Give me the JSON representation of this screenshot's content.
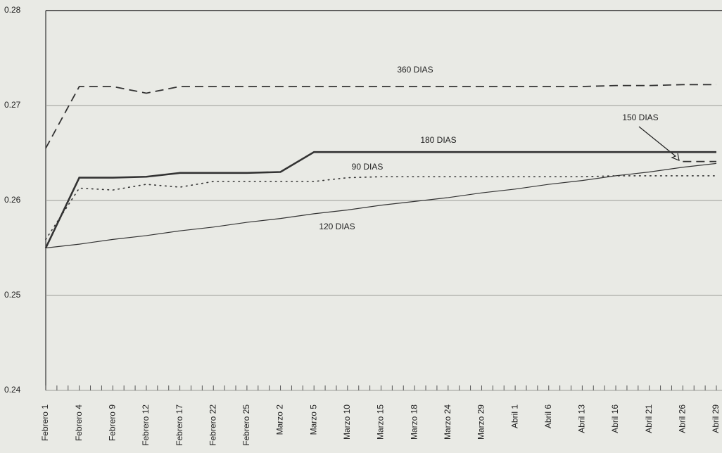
{
  "chart_data": {
    "type": "line",
    "categories": [
      "Febrero 1",
      "Febrero 4",
      "Febrero 9",
      "Febrero 12",
      "Febrero 17",
      "Febrero 22",
      "Febrero 25",
      "Marzo 2",
      "Marzo 5",
      "Marzo 10",
      "Marzo 15",
      "Marzo 18",
      "Marzo 24",
      "Marzo 29",
      "Abril 1",
      "Abril 6",
      "Abril 13",
      "Abril 16",
      "Abril 21",
      "Abril 26",
      "Abril 29"
    ],
    "series": [
      {
        "name": "360 DIAS",
        "color": "#333333",
        "style": "dashed",
        "values": [
          0.2655,
          0.272,
          0.272,
          0.2713,
          0.272,
          0.272,
          0.272,
          0.272,
          0.272,
          0.272,
          0.272,
          0.272,
          0.272,
          0.272,
          0.272,
          0.272,
          0.272,
          0.2721,
          0.2721,
          0.2722,
          0.2722
        ]
      },
      {
        "name": "180 DIAS",
        "color": "#333333",
        "style": "thick",
        "values": [
          0.255,
          0.2624,
          0.2624,
          0.2625,
          0.2629,
          0.2629,
          0.2629,
          0.263,
          0.2651,
          0.2651,
          0.2651,
          0.2651,
          0.2651,
          0.2651,
          0.2651,
          0.2651,
          0.2651,
          0.2651,
          0.2651,
          0.2651,
          0.2651
        ]
      },
      {
        "name": "90 DIAS",
        "color": "#333333",
        "style": "dotted",
        "values": [
          0.2559,
          0.2613,
          0.2611,
          0.2617,
          0.2614,
          0.262,
          0.262,
          0.262,
          0.262,
          0.2624,
          0.2625,
          0.2625,
          0.2625,
          0.2625,
          0.2625,
          0.2625,
          0.2625,
          0.2626,
          0.2626,
          0.2626,
          0.2626
        ]
      },
      {
        "name": "120 DIAS",
        "color": "#333333",
        "style": "thin",
        "values": [
          0.255,
          0.2554,
          0.2559,
          0.2563,
          0.2568,
          0.2572,
          0.2577,
          0.2581,
          0.2586,
          0.259,
          0.2595,
          0.2599,
          0.2603,
          0.2608,
          0.2612,
          0.2617,
          0.2621,
          0.2626,
          0.263,
          0.2635,
          0.2639
        ]
      },
      {
        "name": "150 DIAS",
        "color": "#333333",
        "style": "dashed",
        "values": [
          null,
          null,
          null,
          null,
          null,
          null,
          null,
          null,
          null,
          null,
          null,
          null,
          null,
          null,
          null,
          null,
          null,
          null,
          null,
          0.2641,
          0.2641
        ]
      }
    ],
    "ylim": [
      0.24,
      0.28
    ],
    "yticks": [
      0.24,
      0.25,
      0.26,
      0.27,
      0.28
    ],
    "grid": true
  }
}
